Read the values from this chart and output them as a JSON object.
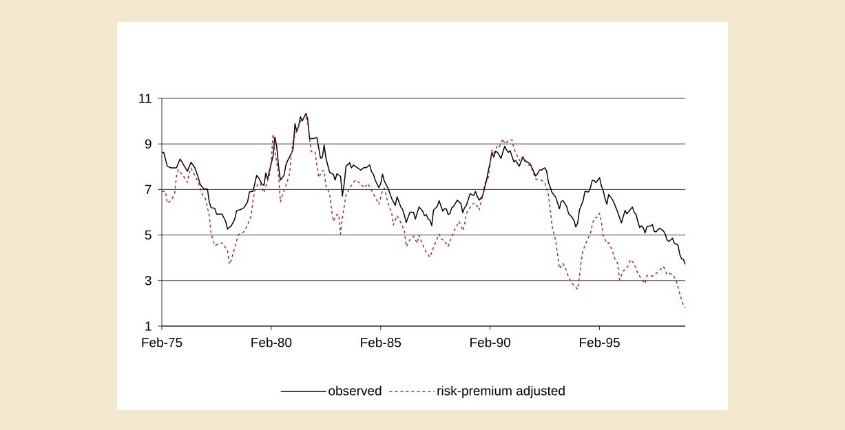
{
  "chart_data": {
    "type": "line",
    "xlim": [
      "1975-02",
      "1999-01"
    ],
    "ylim": [
      1,
      11
    ],
    "xticks": [
      {
        "value": "1975-02",
        "label": "Feb-75"
      },
      {
        "value": "1980-02",
        "label": "Feb-80"
      },
      {
        "value": "1985-02",
        "label": "Feb-85"
      },
      {
        "value": "1990-02",
        "label": "Feb-90"
      },
      {
        "value": "1995-02",
        "label": "Feb-95"
      }
    ],
    "yticks": [
      1,
      3,
      5,
      7,
      9,
      11
    ],
    "grid": "y",
    "legend": "bottom",
    "marker": "none",
    "series": [
      {
        "name": "observed",
        "color": "#000000",
        "line_style": "solid",
        "x": [
          "1975-02",
          "1975-03",
          "1975-05",
          "1975-07",
          "1975-10",
          "1975-12",
          "1976-02",
          "1976-04",
          "1976-06",
          "1976-08",
          "1976-10",
          "1976-11",
          "1977-01",
          "1977-03",
          "1977-04",
          "1977-05",
          "1977-07",
          "1977-08",
          "1977-11",
          "1978-01",
          "1978-02",
          "1978-03",
          "1978-04",
          "1978-06",
          "1978-07",
          "1978-09",
          "1978-11",
          "1979-01",
          "1979-02",
          "1979-04",
          "1979-06",
          "1979-07",
          "1979-09",
          "1979-10",
          "1979-11",
          "1979-12",
          "1980-01",
          "1980-03",
          "1980-04",
          "1980-05",
          "1980-06",
          "1980-07",
          "1980-09",
          "1980-10",
          "1980-11",
          "1981-01",
          "1981-02",
          "1981-03",
          "1981-04",
          "1981-05",
          "1981-06",
          "1981-07",
          "1981-09",
          "1981-10",
          "1981-11",
          "1982-01",
          "1982-03",
          "1982-04",
          "1982-05",
          "1982-06",
          "1982-07",
          "1982-08",
          "1982-10",
          "1982-12",
          "1983-01",
          "1983-02",
          "1983-04",
          "1983-05",
          "1983-06",
          "1983-07",
          "1983-09",
          "1983-10",
          "1983-11",
          "1984-01",
          "1984-03",
          "1984-05",
          "1984-06",
          "1984-08",
          "1984-09",
          "1984-10",
          "1984-11",
          "1985-01",
          "1985-02",
          "1985-03",
          "1985-04",
          "1985-06",
          "1985-08",
          "1985-10",
          "1985-11",
          "1986-01",
          "1986-02",
          "1986-03",
          "1986-04",
          "1986-06",
          "1986-08",
          "1986-09",
          "1986-11",
          "1987-01",
          "1987-02",
          "1987-03",
          "1987-04",
          "1987-05",
          "1987-06",
          "1987-07",
          "1987-09",
          "1987-10",
          "1987-12",
          "1988-01",
          "1988-02",
          "1988-03",
          "1988-04",
          "1988-05",
          "1988-06",
          "1988-08",
          "1988-10",
          "1988-11",
          "1988-12",
          "1989-01",
          "1989-03",
          "1989-05",
          "1989-06",
          "1989-07",
          "1989-08",
          "1989-10",
          "1989-11",
          "1989-12",
          "1990-01",
          "1990-02",
          "1990-03",
          "1990-04",
          "1990-05",
          "1990-06",
          "1990-08",
          "1990-10",
          "1990-11",
          "1990-12",
          "1991-01",
          "1991-03",
          "1991-04",
          "1991-06",
          "1991-08",
          "1991-09",
          "1991-10",
          "1991-12",
          "1992-03",
          "1992-04",
          "1992-05",
          "1992-06",
          "1992-08",
          "1992-09",
          "1992-10",
          "1992-12",
          "1993-02",
          "1993-04",
          "1993-05",
          "1993-06",
          "1993-08",
          "1993-09",
          "1993-11",
          "1993-12",
          "1994-01",
          "1994-02",
          "1994-03",
          "1994-05",
          "1994-06",
          "1994-08",
          "1994-09",
          "1994-10",
          "1994-11",
          "1994-12",
          "1995-02",
          "1995-03",
          "1995-04",
          "1995-05",
          "1995-06",
          "1995-07",
          "1995-09",
          "1995-10",
          "1995-12",
          "1996-02",
          "1996-04",
          "1996-05",
          "1996-08",
          "1996-09",
          "1996-10",
          "1996-11",
          "1996-12",
          "1997-01",
          "1997-02",
          "1997-03",
          "1997-04",
          "1997-06",
          "1997-07",
          "1997-08",
          "1997-09",
          "1997-10",
          "1997-11",
          "1998-01",
          "1998-02",
          "1998-03",
          "1998-04",
          "1998-06",
          "1998-07",
          "1998-09",
          "1998-10",
          "1998-11",
          "1998-12",
          "1999-01"
        ],
        "values": [
          8.63,
          8.63,
          8.02,
          7.95,
          7.95,
          8.34,
          8.07,
          7.8,
          8.19,
          7.97,
          7.52,
          7.23,
          7.02,
          7.02,
          6.45,
          6.2,
          6.17,
          5.92,
          5.92,
          5.6,
          5.26,
          5.34,
          5.39,
          5.7,
          6.07,
          6.11,
          6.2,
          6.45,
          6.89,
          6.92,
          7.62,
          7.52,
          7.23,
          7.18,
          7.72,
          7.46,
          7.82,
          8.47,
          9.3,
          8.88,
          8.02,
          7.41,
          7.62,
          8.07,
          8.27,
          8.58,
          8.78,
          9.89,
          9.54,
          9.79,
          10.19,
          10.01,
          10.34,
          10.09,
          9.23,
          9.23,
          9.28,
          8.83,
          8.37,
          8.4,
          8.95,
          8.37,
          7.75,
          7.67,
          7.41,
          7.69,
          7.57,
          6.71,
          7.26,
          8.02,
          8.17,
          7.95,
          8.07,
          7.97,
          7.85,
          7.97,
          7.95,
          8.07,
          7.77,
          7.67,
          7.41,
          7.08,
          7.26,
          7.67,
          7.36,
          7.06,
          6.61,
          6.3,
          6.68,
          6.23,
          6.13,
          5.87,
          5.55,
          6.0,
          6.0,
          5.7,
          6.23,
          6.05,
          5.85,
          5.9,
          5.7,
          5.65,
          5.42,
          6.1,
          6.25,
          6.51,
          6.05,
          6.15,
          6.15,
          5.9,
          5.95,
          6.2,
          6.25,
          6.53,
          6.38,
          5.98,
          6.2,
          6.3,
          6.81,
          6.74,
          6.91,
          6.69,
          6.53,
          6.73,
          7.08,
          7.38,
          7.82,
          8.17,
          8.63,
          8.42,
          8.68,
          8.63,
          8.37,
          8.9,
          8.73,
          8.63,
          8.7,
          8.22,
          8.27,
          8.02,
          8.44,
          8.24,
          8.22,
          8.12,
          7.59,
          7.69,
          7.85,
          7.85,
          7.95,
          7.8,
          7.31,
          6.86,
          6.66,
          6.15,
          6.48,
          6.51,
          6.25,
          5.95,
          5.77,
          5.63,
          5.36,
          5.52,
          6.1,
          6.51,
          6.91,
          6.89,
          7.08,
          7.4,
          7.4,
          7.3,
          7.52,
          7.16,
          6.96,
          6.61,
          6.35,
          6.78,
          6.57,
          6.4,
          6.0,
          5.53,
          6.08,
          5.93,
          6.23,
          6.0,
          5.9,
          5.6,
          5.33,
          5.4,
          5.32,
          5.09,
          5.37,
          5.4,
          5.46,
          5.16,
          5.14,
          5.24,
          5.29,
          5.19,
          5.04,
          4.79,
          4.71,
          4.86,
          4.64,
          4.56,
          4.15,
          3.95,
          3.93,
          3.71
        ]
      },
      {
        "name": "risk-premium adjusted",
        "color": "#a52a2a",
        "line_style": "dashed",
        "x": [
          "1975-02",
          "1975-04",
          "1975-05",
          "1975-07",
          "1975-09",
          "1975-10",
          "1975-11",
          "1976-02",
          "1976-04",
          "1976-05",
          "1976-06",
          "1976-08",
          "1976-10",
          "1976-12",
          "1977-02",
          "1977-04",
          "1977-05",
          "1977-07",
          "1977-11",
          "1978-02",
          "1978-03",
          "1978-04",
          "1978-07",
          "1978-08",
          "1978-11",
          "1979-01",
          "1979-03",
          "1979-04",
          "1979-05",
          "1979-07",
          "1979-08",
          "1979-10",
          "1979-11",
          "1980-01",
          "1980-02",
          "1980-03",
          "1980-04",
          "1980-06",
          "1980-07",
          "1980-08",
          "1980-10",
          "1980-12",
          "1981-01",
          "1981-02",
          "1981-03",
          "1981-04",
          "1981-06",
          "1981-07",
          "1981-09",
          "1981-10",
          "1981-11",
          "1981-12",
          "1982-02",
          "1982-03",
          "1982-04",
          "1982-06",
          "1982-07",
          "1982-08",
          "1982-10",
          "1982-11",
          "1982-12",
          "1983-02",
          "1983-03",
          "1983-04",
          "1983-05",
          "1983-07",
          "1983-09",
          "1983-12",
          "1984-03",
          "1984-05",
          "1984-07",
          "1984-09",
          "1984-11",
          "1985-01",
          "1985-03",
          "1985-04",
          "1985-06",
          "1985-08",
          "1985-09",
          "1985-11",
          "1986-01",
          "1986-03",
          "1986-04",
          "1986-06",
          "1986-08",
          "1986-10",
          "1986-11",
          "1987-01",
          "1987-03",
          "1987-05",
          "1987-08",
          "1987-10",
          "1987-11",
          "1988-01",
          "1988-03",
          "1988-05",
          "1988-07",
          "1988-09",
          "1988-11",
          "1988-12",
          "1989-01",
          "1989-04",
          "1989-06",
          "1989-08",
          "1989-10",
          "1989-11",
          "1990-01",
          "1990-02",
          "1990-03",
          "1990-04",
          "1990-06",
          "1990-07",
          "1990-09",
          "1990-10",
          "1990-12",
          "1991-02",
          "1991-03",
          "1991-04",
          "1991-06",
          "1991-07",
          "1991-09",
          "1991-11",
          "1991-12",
          "1992-03",
          "1992-06",
          "1992-08",
          "1992-10",
          "1992-11",
          "1992-12",
          "1993-02",
          "1993-03",
          "1993-04",
          "1993-06",
          "1993-08",
          "1993-09",
          "1993-11",
          "1994-02",
          "1994-03",
          "1994-04",
          "1994-05",
          "1994-07",
          "1994-09",
          "1994-10",
          "1994-11",
          "1995-01",
          "1995-02",
          "1995-03",
          "1995-04",
          "1995-06",
          "1995-07",
          "1995-09",
          "1995-10",
          "1995-12",
          "1996-01",
          "1996-03",
          "1996-05",
          "1996-07",
          "1996-09",
          "1996-11",
          "1997-01",
          "1997-03",
          "1997-04",
          "1997-07",
          "1997-10",
          "1998-01",
          "1998-03",
          "1998-04",
          "1998-06",
          "1998-08",
          "1998-10",
          "1998-12",
          "1999-01"
        ],
        "values": [
          6.91,
          6.91,
          6.4,
          6.51,
          6.81,
          7.57,
          7.87,
          7.57,
          7.31,
          7.72,
          7.94,
          7.62,
          7.31,
          6.81,
          6.58,
          5.85,
          5.09,
          4.54,
          4.66,
          4.33,
          3.71,
          3.88,
          4.74,
          5.02,
          5.14,
          5.44,
          5.85,
          6.51,
          6.96,
          7.28,
          7.26,
          6.86,
          7.14,
          7.62,
          8.27,
          9.43,
          8.68,
          7.67,
          6.45,
          6.71,
          7.16,
          7.67,
          8.53,
          9.13,
          9.38,
          9.59,
          9.99,
          10.09,
          10.24,
          9.89,
          9.23,
          8.66,
          8.66,
          8.07,
          7.52,
          7.82,
          7.82,
          7.16,
          6.81,
          6.15,
          5.6,
          5.9,
          5.9,
          5.04,
          5.75,
          6.76,
          7.06,
          7.41,
          7.26,
          7.06,
          7.26,
          6.96,
          6.66,
          6.35,
          6.96,
          7.06,
          6.4,
          6.0,
          5.44,
          5.85,
          5.55,
          5.19,
          4.49,
          4.79,
          4.94,
          4.64,
          4.99,
          4.59,
          4.23,
          4.03,
          4.66,
          5.04,
          4.84,
          4.74,
          4.49,
          4.94,
          5.29,
          5.6,
          5.19,
          5.46,
          5.95,
          6.35,
          6.4,
          6.1,
          6.76,
          7.26,
          7.52,
          8.07,
          8.73,
          8.58,
          8.93,
          8.86,
          9.23,
          9.0,
          9.13,
          9.18,
          8.83,
          8.63,
          8.27,
          8.42,
          8.37,
          8.07,
          8.07,
          7.46,
          7.41,
          7.31,
          6.76,
          6.1,
          5.39,
          4.74,
          4.13,
          3.52,
          3.76,
          3.42,
          3.14,
          2.87,
          2.62,
          3.17,
          3.88,
          4.33,
          4.74,
          5.06,
          5.44,
          5.73,
          5.8,
          5.95,
          5.6,
          4.99,
          4.64,
          4.66,
          4.33,
          4.03,
          3.73,
          3.03,
          3.42,
          3.53,
          3.93,
          3.73,
          3.32,
          3.07,
          2.87,
          3.22,
          3.2,
          3.37,
          3.62,
          3.27,
          3.32,
          3.27,
          3.03,
          2.42,
          1.91,
          1.81
        ]
      }
    ]
  }
}
